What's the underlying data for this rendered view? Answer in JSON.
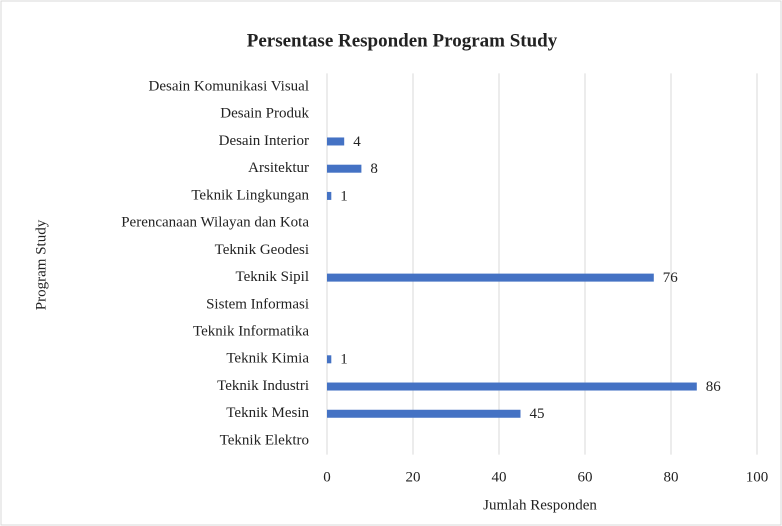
{
  "chart_data": {
    "type": "bar",
    "orientation": "horizontal",
    "title": "Persentase Responden Program Study",
    "x_label": "Jumlah Responden",
    "y_label": "Program Study",
    "categories": [
      "Desain Komunikasi Visual",
      "Desain Produk",
      "Desain Interior",
      "Arsitektur",
      "Teknik Lingkungan",
      "Perencanaan Wilayan dan Kota",
      "Teknik Geodesi",
      "Teknik Sipil",
      "Sistem Informasi",
      "Teknik Informatika",
      "Teknik Kimia",
      "Teknik Industri",
      "Teknik Mesin",
      "Teknik Elektro"
    ],
    "values": [
      0,
      0,
      4,
      8,
      1,
      0,
      0,
      76,
      0,
      0,
      1,
      86,
      45,
      0
    ],
    "color": "#4472c4",
    "xlim": [
      0,
      100
    ],
    "xticks": [
      0,
      20,
      40,
      60,
      80,
      100
    ],
    "grid": true
  }
}
